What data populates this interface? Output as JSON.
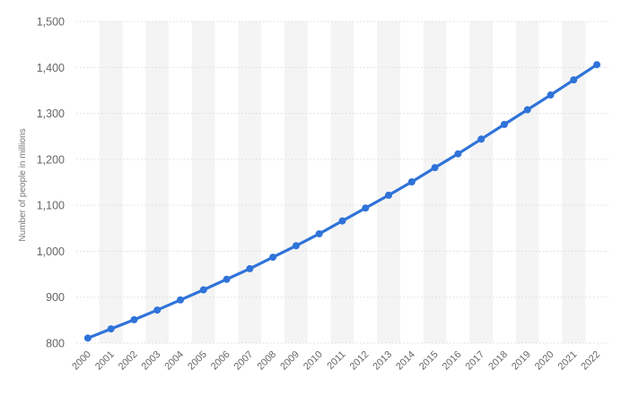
{
  "chart_data": {
    "type": "line",
    "title": "",
    "xlabel": "",
    "ylabel": "Number of people in millions",
    "ylim": [
      800,
      1500
    ],
    "yticks": [
      "800",
      "900",
      "1,000",
      "1,100",
      "1,200",
      "1,300",
      "1,400",
      "1,500"
    ],
    "categories": [
      "2000",
      "2001",
      "2002",
      "2003",
      "2004",
      "2005",
      "2006",
      "2007",
      "2008",
      "2009",
      "2010",
      "2011",
      "2012",
      "2013",
      "2014",
      "2015",
      "2016",
      "2017",
      "2018",
      "2019",
      "2020",
      "2021",
      "2022"
    ],
    "series": [
      {
        "values": [
          811,
          831,
          851,
          872,
          894,
          916,
          939,
          962,
          987,
          1012,
          1038,
          1066,
          1094,
          1122,
          1151,
          1182,
          1212,
          1244,
          1276,
          1308,
          1340,
          1373,
          1406
        ]
      }
    ],
    "grid": true,
    "band_shading": "alternate-years",
    "colors": {
      "line": "#2f73d9",
      "marker": "#2f73d9",
      "grid": "#d9d9d9",
      "band": "#f4f4f4"
    }
  }
}
